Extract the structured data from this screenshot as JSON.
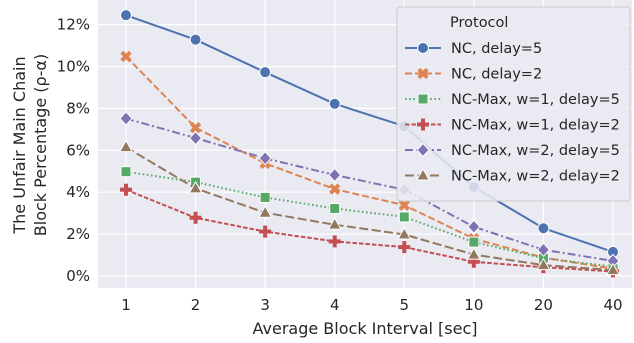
{
  "chart_data": {
    "type": "line",
    "xlabel": "Average Block Interval [sec]",
    "ylabel": [
      "The Unfair Main Chain",
      "Block Percentage (ρ-α)"
    ],
    "categories": [
      "1",
      "2",
      "3",
      "4",
      "5",
      "10",
      "20",
      "40"
    ],
    "y_ticks": [
      "0%",
      "2%",
      "4%",
      "6%",
      "8%",
      "10%",
      "12%"
    ],
    "ylim": [
      0,
      0.13
    ],
    "grid": true,
    "legend_title": "Protocol",
    "legend_position": "top-right",
    "series": [
      {
        "name": "NC, delay=5",
        "color": "#4c72b0",
        "marker": "circle",
        "dash": "solid",
        "values": [
          0.1245,
          0.1128,
          0.0973,
          0.0822,
          0.0715,
          0.0425,
          0.0228,
          0.0115
        ]
      },
      {
        "name": "NC, delay=2",
        "color": "#dd8452",
        "marker": "x",
        "dash": "dashed",
        "values": [
          0.1048,
          0.0708,
          0.0538,
          0.0415,
          0.0338,
          0.0178,
          0.0088,
          0.0035
        ]
      },
      {
        "name": "NC-Max, w=1, delay=5",
        "color": "#55a868",
        "marker": "square",
        "dash": "dotted",
        "values": [
          0.0498,
          0.0448,
          0.0375,
          0.0322,
          0.0282,
          0.0162,
          0.0085,
          0.0045
        ]
      },
      {
        "name": "NC-Max, w=1, delay=2",
        "color": "#c44e52",
        "marker": "plus",
        "dash": "densedash",
        "values": [
          0.0412,
          0.0278,
          0.0212,
          0.0165,
          0.0138,
          0.0068,
          0.0042,
          0.0022
        ]
      },
      {
        "name": "NC-Max, w=2, delay=5",
        "color": "#8172b3",
        "marker": "diamond",
        "dash": "dashdot",
        "values": [
          0.0752,
          0.0658,
          0.0562,
          0.0482,
          0.0412,
          0.0235,
          0.0125,
          0.0072
        ]
      },
      {
        "name": "NC-Max, w=2, delay=2",
        "color": "#937860",
        "marker": "triangle",
        "dash": "longdash",
        "values": [
          0.0615,
          0.0418,
          0.0302,
          0.0245,
          0.0198,
          0.0102,
          0.0052,
          0.0028
        ]
      }
    ]
  }
}
